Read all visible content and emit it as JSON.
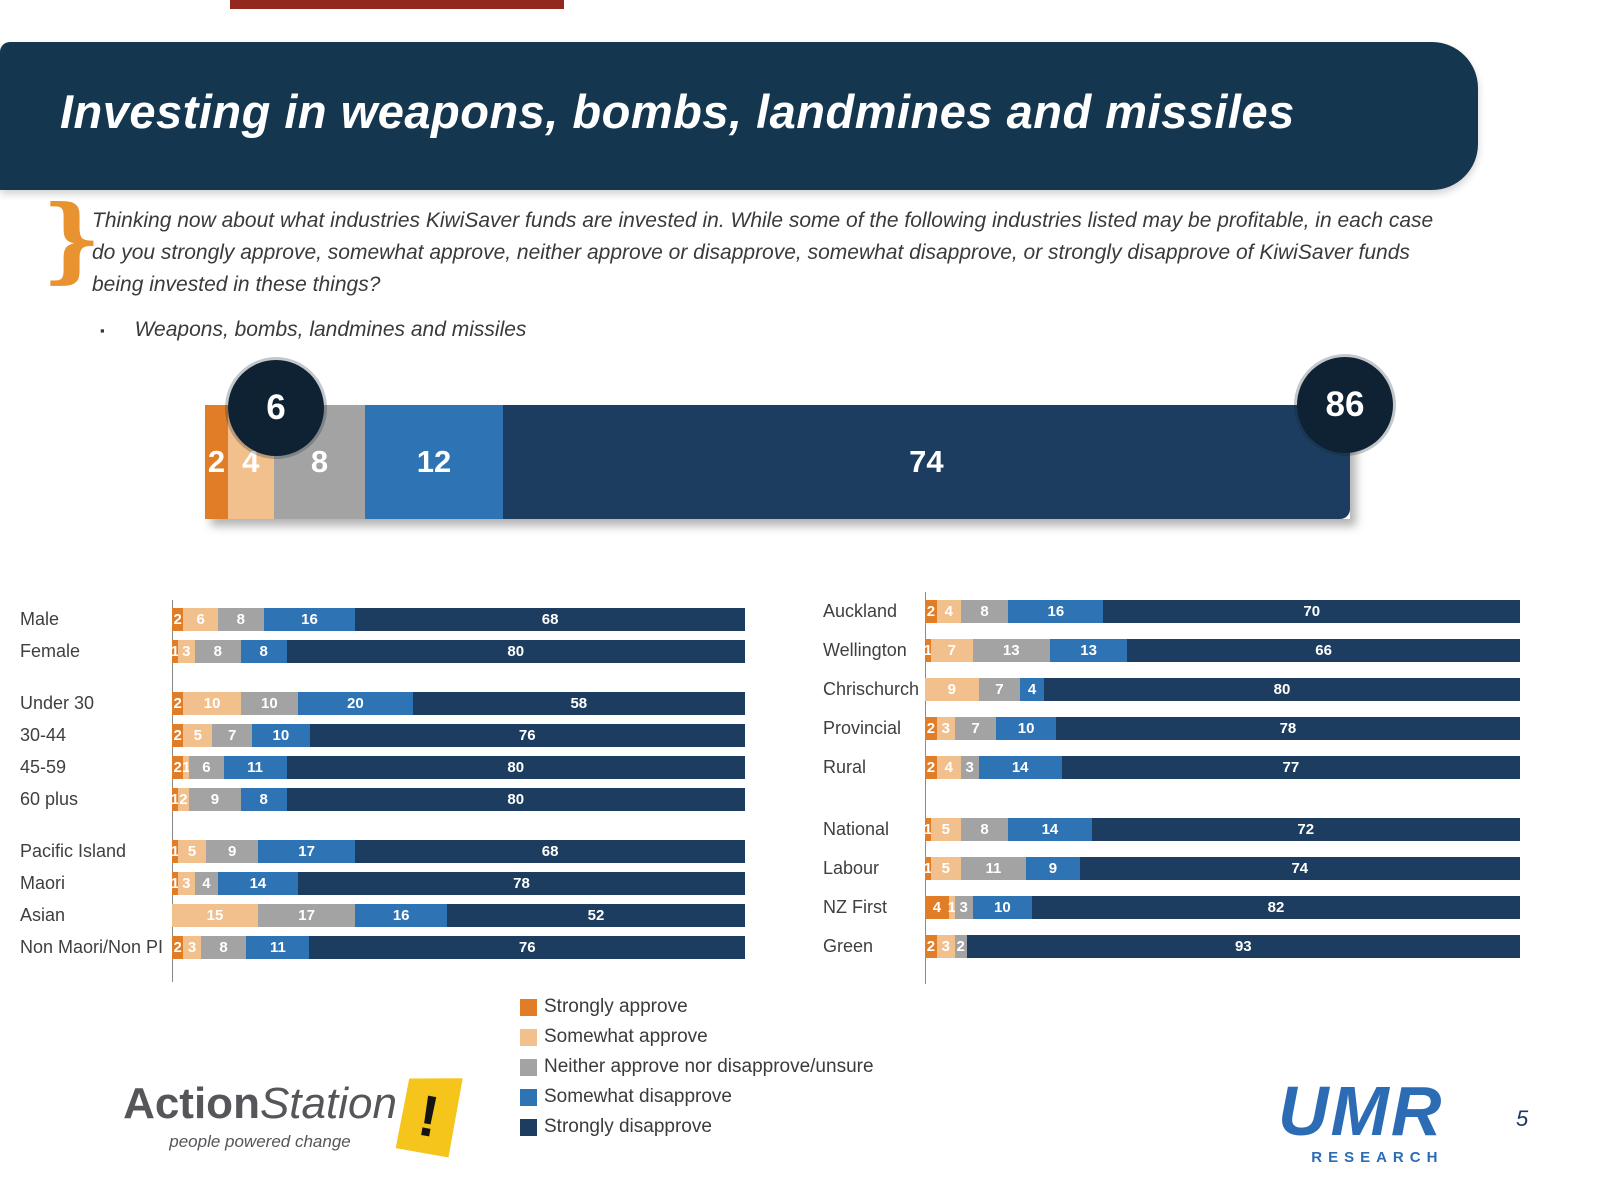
{
  "page_number": "5",
  "header": {
    "title": "Investing in weapons, bombs, landmines and missiles"
  },
  "question": {
    "brace": "}",
    "text": "Thinking now about what industries KiwiSaver funds are invested in. While some of the following industries listed may be profitable, in each case do you strongly approve, somewhat approve, neither approve or disapprove, somewhat disapprove, or strongly disapprove of KiwiSaver funds being invested in these things?",
    "bullet_marker": "▪",
    "bullet_text": "Weapons, bombs, landmines and missiles"
  },
  "legend": {
    "items": [
      {
        "label": "Strongly approve",
        "color": "#e07d26"
      },
      {
        "label": "Somewhat approve",
        "color": "#f2c08c"
      },
      {
        "label": "Neither approve nor disapprove/unsure",
        "color": "#a3a3a3"
      },
      {
        "label": "Somewhat disapprove",
        "color": "#2e74b5"
      },
      {
        "label": "Strongly disapprove",
        "color": "#1d3d60"
      }
    ]
  },
  "chart_data": [
    {
      "type": "bar",
      "layout": "horizontal-stacked",
      "name": "overall",
      "series_labels": [
        "Strongly approve",
        "Somewhat approve",
        "Neither approve nor disapprove/unsure",
        "Somewhat disapprove",
        "Strongly disapprove"
      ],
      "xlim": [
        0,
        100
      ],
      "rows": [
        {
          "label": "Total",
          "values": [
            2,
            4,
            8,
            12,
            74
          ]
        }
      ],
      "callouts": {
        "approve_total": "6",
        "disapprove_total": "86"
      }
    },
    {
      "type": "bar",
      "layout": "horizontal-stacked",
      "name": "demographics",
      "series_labels": [
        "Strongly approve",
        "Somewhat approve",
        "Neither approve nor disapprove/unsure",
        "Somewhat disapprove",
        "Strongly disapprove"
      ],
      "xlim": [
        0,
        100
      ],
      "rows": [
        {
          "label": "Male",
          "values": [
            2,
            6,
            8,
            16,
            68
          ]
        },
        {
          "label": "Female",
          "values": [
            1,
            3,
            8,
            8,
            80
          ]
        },
        {
          "label": "Under 30",
          "values": [
            2,
            10,
            10,
            20,
            58
          ],
          "gap_before": true
        },
        {
          "label": "30-44",
          "values": [
            2,
            5,
            7,
            10,
            76
          ]
        },
        {
          "label": "45-59",
          "values": [
            2,
            1,
            6,
            11,
            80
          ]
        },
        {
          "label": "60 plus",
          "values": [
            1,
            2,
            9,
            8,
            80
          ]
        },
        {
          "label": "Pacific Island",
          "values": [
            1,
            5,
            9,
            17,
            68
          ],
          "gap_before": true
        },
        {
          "label": "Maori",
          "values": [
            1,
            3,
            4,
            14,
            78
          ]
        },
        {
          "label": "Asian",
          "values": [
            0,
            15,
            17,
            16,
            52
          ]
        },
        {
          "label": "Non Maori/Non PI",
          "values": [
            2,
            3,
            8,
            11,
            76
          ]
        }
      ]
    },
    {
      "type": "bar",
      "layout": "horizontal-stacked",
      "name": "regions-and-parties",
      "series_labels": [
        "Strongly approve",
        "Somewhat approve",
        "Neither approve nor disapprove/unsure",
        "Somewhat disapprove",
        "Strongly disapprove"
      ],
      "xlim": [
        0,
        100
      ],
      "rows": [
        {
          "label": "Auckland",
          "values": [
            2,
            4,
            8,
            16,
            70
          ]
        },
        {
          "label": "Wellington",
          "values": [
            1,
            7,
            13,
            13,
            66
          ]
        },
        {
          "label": "Chrischurch",
          "values": [
            0,
            9,
            7,
            4,
            80
          ]
        },
        {
          "label": "Provincial",
          "values": [
            2,
            3,
            7,
            10,
            78
          ]
        },
        {
          "label": "Rural",
          "values": [
            2,
            4,
            3,
            14,
            77
          ]
        },
        {
          "label": "National",
          "values": [
            1,
            5,
            8,
            14,
            72
          ],
          "gap_before": true
        },
        {
          "label": "Labour",
          "values": [
            1,
            5,
            11,
            9,
            74
          ]
        },
        {
          "label": "NZ First",
          "values": [
            4,
            1,
            3,
            10,
            82
          ]
        },
        {
          "label": "Green",
          "values": [
            2,
            3,
            2,
            0,
            93
          ]
        }
      ]
    }
  ],
  "footer": {
    "actionstation": {
      "part1": "Action",
      "part2": "Station",
      "tagline": "people powered change",
      "mark": "!"
    },
    "umr": {
      "name": "UMR",
      "sub": "RESEARCH"
    }
  }
}
